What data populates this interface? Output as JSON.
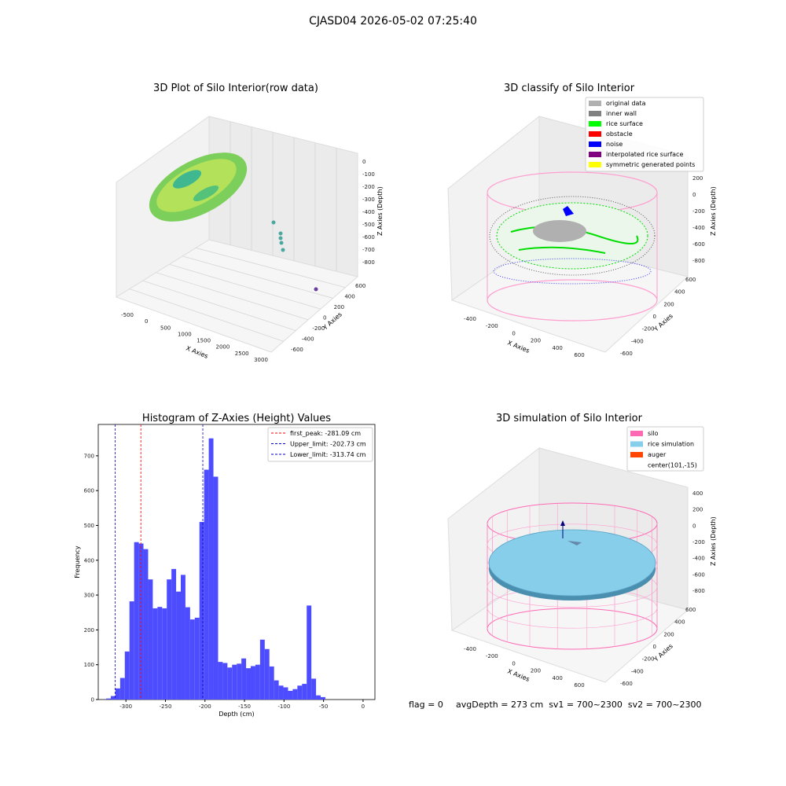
{
  "suptitle": "CJASD04 2026-05-02 07:25:40",
  "footer": {
    "flag": "flag = 0",
    "stats": "avgDepth = 273 cm  sv1 = 700~2300  sv2 = 700~2300"
  },
  "panels": {
    "raw": {
      "title": "3D Plot of Silo Interior(row data)",
      "xlabel": "X Axies",
      "ylabel": "Y Axies",
      "zlabel": "Z Axies (Depth)",
      "xticks": [
        "-500",
        "0",
        "500",
        "1000",
        "1500",
        "2000",
        "2500",
        "3000"
      ],
      "yticks": [
        "600",
        "400",
        "200",
        "0",
        "-200",
        "-400",
        "-600"
      ],
      "zticks": [
        "0",
        "-100",
        "-200",
        "-300",
        "-400",
        "-500",
        "-600",
        "-700",
        "-800"
      ]
    },
    "classify": {
      "title": "3D classify of Silo Interior",
      "xlabel": "X Axies",
      "ylabel": "Y Axies",
      "zlabel": "Z Axies (Depth)",
      "xticks": [
        "-400",
        "-200",
        "0",
        "200",
        "400",
        "600"
      ],
      "yticks": [
        "600",
        "400",
        "200",
        "0",
        "-200",
        "-400",
        "-600"
      ],
      "zticks": [
        "200",
        "0",
        "-200",
        "-400",
        "-600",
        "-800"
      ],
      "legend": [
        {
          "label": "original data",
          "color": "#b0b0b0"
        },
        {
          "label": "inner wall",
          "color": "#808080"
        },
        {
          "label": "rice surface",
          "color": "#00ff00"
        },
        {
          "label": "obstacle",
          "color": "#ff0000"
        },
        {
          "label": "noise",
          "color": "#0000ff"
        },
        {
          "label": "interpolated rice surface",
          "color": "#800080"
        },
        {
          "label": "symmetric generated points",
          "color": "#ffff00"
        }
      ]
    },
    "simulation": {
      "title": "3D simulation of Silo Interior",
      "xlabel": "X Axies",
      "ylabel": "Y Axies",
      "zlabel": "Z Axies (Depth)",
      "xticks": [
        "-400",
        "-200",
        "0",
        "200",
        "400",
        "600"
      ],
      "yticks": [
        "600",
        "400",
        "200",
        "0",
        "-200",
        "-400",
        "-600"
      ],
      "zticks": [
        "400",
        "200",
        "0",
        "-200",
        "-400",
        "-600",
        "-800"
      ],
      "legend": [
        {
          "label": "silo",
          "color": "#ff69b4"
        },
        {
          "label": "rice simulation",
          "color": "#87ceeb"
        },
        {
          "label": "auger",
          "color": "#ff4500"
        },
        {
          "label": "center(101,-15)",
          "color": ""
        }
      ]
    }
  },
  "chart_data": {
    "type": "bar",
    "title": "Histogram of Z-Axies (Height) Values",
    "xlabel": "Depth (cm)",
    "ylabel": "Frequency",
    "xlim": [
      -335,
      15
    ],
    "ylim": [
      0,
      790
    ],
    "xticks": [
      -300,
      -250,
      -200,
      -150,
      -100,
      -50,
      0
    ],
    "yticks": [
      0,
      100,
      200,
      300,
      400,
      500,
      600,
      700
    ],
    "bin_width": 5.9,
    "bin_starts": [
      -325,
      -319.1,
      -313.2,
      -307.3,
      -301.4,
      -295.5,
      -289.6,
      -283.7,
      -277.8,
      -271.9,
      -266,
      -260.1,
      -254.2,
      -248.3,
      -242.4,
      -236.5,
      -230.6,
      -224.7,
      -218.8,
      -212.9,
      -207,
      -201.1,
      -195.2,
      -189.3,
      -183.4,
      -177.5,
      -171.6,
      -165.7,
      -159.8,
      -153.9,
      -148,
      -142.1,
      -136.2,
      -130.3,
      -124.4,
      -118.5,
      -112.6,
      -106.7,
      -100.8,
      -94.9,
      -89,
      -83.1,
      -77.2,
      -71.3,
      -65.4,
      -59.5,
      -53.6,
      -47.7,
      -41.8,
      -35.9,
      -30,
      -24.1,
      -18.2
    ],
    "values": [
      3,
      10,
      32,
      62,
      138,
      282,
      452,
      448,
      432,
      345,
      262,
      266,
      262,
      345,
      375,
      310,
      358,
      265,
      230,
      235,
      510,
      660,
      750,
      640,
      108,
      105,
      92,
      100,
      103,
      118,
      90,
      96,
      100,
      172,
      145,
      95,
      55,
      40,
      35,
      25,
      30,
      40,
      45,
      270,
      60,
      12,
      7,
      0,
      0,
      0,
      0,
      0,
      0
    ],
    "lines": [
      {
        "label": "first_peak: -281.09 cm",
        "x": -281.09,
        "color": "#ff0000"
      },
      {
        "label": "Upper_limit: -202.73 cm",
        "x": -202.73,
        "color": "#0000cc"
      },
      {
        "label": "Lower_limit: -313.74 cm",
        "x": -313.74,
        "color": "#0000cc"
      }
    ],
    "bar_color": "#4d4dff",
    "legend_position": "top-right"
  }
}
